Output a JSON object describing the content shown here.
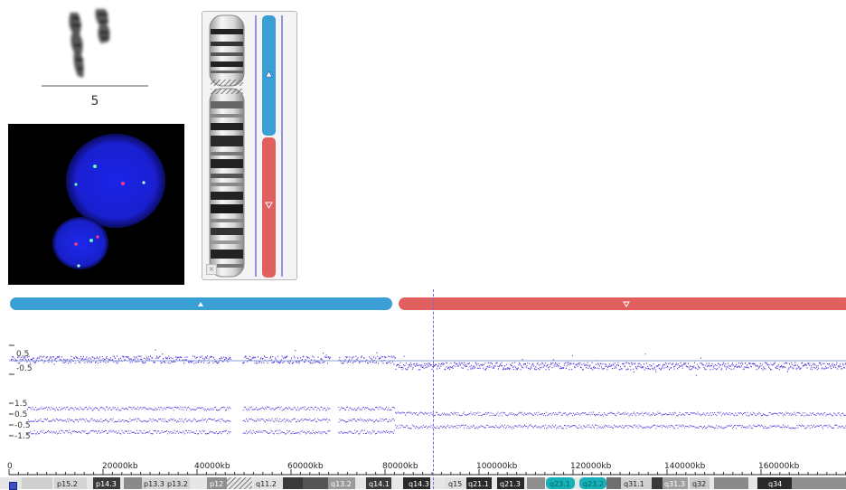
{
  "karyogram": {
    "chromosome_label": "5"
  },
  "tracks": {
    "track1_ticks": [
      "0.5",
      "-0.5"
    ],
    "track2_ticks": [
      "1.5",
      "0.5",
      "-0.5",
      "-1.5"
    ]
  },
  "ruler": {
    "labels": [
      "0",
      "20000kb",
      "40000kb",
      "60000kb",
      "80000kb",
      "100000kb",
      "120000kb",
      "140000kb",
      "160000kb"
    ]
  },
  "bands": [
    {
      "label": "p15.2",
      "shade": "light"
    },
    {
      "label": "p14.3",
      "shade": "dark"
    },
    {
      "label": "p13.3",
      "shade": "light"
    },
    {
      "label": "p13.2",
      "shade": "light"
    },
    {
      "label": "p12",
      "shade": "gray"
    },
    {
      "label": "q11.2",
      "shade": "light"
    },
    {
      "label": "q13.2",
      "shade": "gray"
    },
    {
      "label": "q14.1",
      "shade": "dark"
    },
    {
      "label": "q14.3",
      "shade": "dark"
    },
    {
      "label": "q15",
      "shade": "light"
    },
    {
      "label": "q21.1",
      "shade": "dark"
    },
    {
      "label": "q21.3",
      "shade": "dark"
    },
    {
      "label": "q23.1",
      "shade": "cyan"
    },
    {
      "label": "q23.2",
      "shade": "cyan"
    },
    {
      "label": "q31.1",
      "shade": "light"
    },
    {
      "label": "q31.3",
      "shade": "gray"
    },
    {
      "label": "q32",
      "shade": "light"
    },
    {
      "label": "q34",
      "shade": "dark"
    }
  ],
  "colors": {
    "gain": "#3a9fd5",
    "loss": "#e25f5f",
    "points": "#4b2fd9"
  }
}
